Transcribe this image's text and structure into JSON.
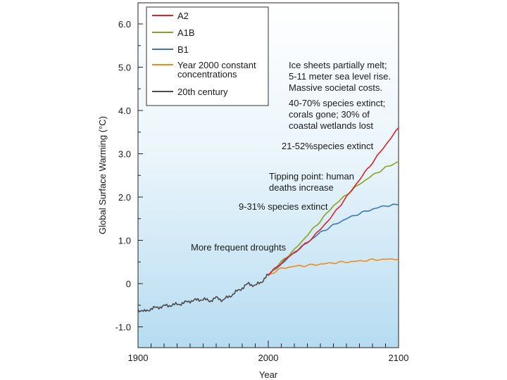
{
  "chart_data": {
    "type": "line",
    "title": "",
    "xlabel": "Year",
    "ylabel": "Global Surface Warming (°C)",
    "xlim": [
      1900,
      2100
    ],
    "ylim": [
      -1.5,
      6.5
    ],
    "x_ticks": [
      {
        "value": 1900,
        "label": "1900"
      },
      {
        "value": 2000,
        "label": "2000"
      },
      {
        "value": 2100,
        "label": "2100"
      }
    ],
    "y_ticks": [
      {
        "value": 6.0,
        "label": "6.0"
      },
      {
        "value": 5.0,
        "label": "5.0"
      },
      {
        "value": 4.0,
        "label": "4.0"
      },
      {
        "value": 3.0,
        "label": "3.0"
      },
      {
        "value": 2.0,
        "label": "2.0"
      },
      {
        "value": 1.0,
        "label": "1.0"
      },
      {
        "value": 0,
        "label": "0"
      },
      {
        "value": -1.0,
        "label": "-1.0"
      }
    ],
    "series": [
      {
        "name": "A2",
        "color": "#e0202a",
        "x": [
          2000,
          2010,
          2020,
          2030,
          2040,
          2050,
          2060,
          2070,
          2080,
          2090,
          2100
        ],
        "y": [
          0.2,
          0.48,
          0.72,
          0.95,
          1.25,
          1.6,
          2.0,
          2.4,
          2.8,
          3.2,
          3.6
        ]
      },
      {
        "name": "A1B",
        "color": "#8aa31e",
        "x": [
          2000,
          2010,
          2020,
          2030,
          2040,
          2050,
          2060,
          2070,
          2080,
          2090,
          2100
        ],
        "y": [
          0.2,
          0.5,
          0.78,
          1.12,
          1.45,
          1.8,
          2.05,
          2.3,
          2.5,
          2.68,
          2.82
        ]
      },
      {
        "name": "B1",
        "color": "#3c78b4",
        "x": [
          2000,
          2010,
          2020,
          2030,
          2040,
          2050,
          2060,
          2070,
          2080,
          2090,
          2100
        ],
        "y": [
          0.2,
          0.45,
          0.72,
          0.95,
          1.18,
          1.35,
          1.5,
          1.62,
          1.72,
          1.8,
          1.82
        ]
      },
      {
        "name": "Year 2000 constant concentrations",
        "color": "#f08a1c",
        "x": [
          2000,
          2010,
          2020,
          2030,
          2040,
          2050,
          2060,
          2070,
          2080,
          2090,
          2100
        ],
        "y": [
          0.2,
          0.35,
          0.4,
          0.42,
          0.45,
          0.48,
          0.5,
          0.52,
          0.55,
          0.56,
          0.57
        ]
      },
      {
        "name": "20th century",
        "color": "#4a4a4a",
        "x": [
          1900,
          1905,
          1910,
          1915,
          1920,
          1925,
          1930,
          1935,
          1940,
          1945,
          1950,
          1955,
          1960,
          1965,
          1970,
          1975,
          1980,
          1985,
          1990,
          1995,
          2000
        ],
        "y": [
          -0.6,
          -0.65,
          -0.58,
          -0.55,
          -0.52,
          -0.5,
          -0.48,
          -0.45,
          -0.4,
          -0.38,
          -0.36,
          -0.4,
          -0.33,
          -0.38,
          -0.3,
          -0.2,
          -0.1,
          0.0,
          -0.05,
          0.05,
          0.2
        ]
      }
    ],
    "legend": [
      {
        "label": "A2",
        "color": "#e0202a"
      },
      {
        "label": "A1B",
        "color": "#8aa31e"
      },
      {
        "label": "B1",
        "color": "#3c78b4"
      },
      {
        "label": "Year 2000 constant",
        "label2": "concentrations",
        "color": "#f08a1c"
      },
      {
        "label": "20th century",
        "color": "#4a4a4a"
      }
    ],
    "annotations": [
      {
        "lines": [
          "Ice sheets partially melt;",
          "5-11 meter sea level rise.",
          "Massive societal costs."
        ]
      },
      {
        "lines": [
          "40-70% species extinct;",
          "corals gone; 30% of",
          "coastal wetlands lost"
        ]
      },
      {
        "lines": [
          "21-52%species extinct"
        ]
      },
      {
        "lines": [
          "Tipping point: human",
          "deaths increase"
        ]
      },
      {
        "lines": [
          "9-31% species extinct"
        ]
      },
      {
        "lines": [
          "More frequent droughts"
        ]
      }
    ]
  }
}
